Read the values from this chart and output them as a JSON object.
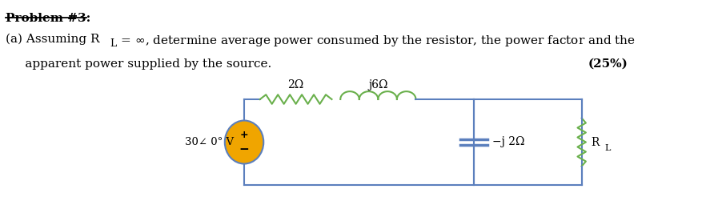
{
  "bg_color": "#ffffff",
  "title_fontsize": 11,
  "body_fontsize": 11,
  "circuit_color": "#5b7fbd",
  "resistor_color": "#6ab04c",
  "source_fill": "#f0a500",
  "label_2ohm": "2Ω",
  "label_j6ohm": "j6Ω",
  "label_source": "30∠ 0° V",
  "label_neg_j2": "−j 2Ω",
  "label_RL": "R",
  "label_RL_sub": "L"
}
